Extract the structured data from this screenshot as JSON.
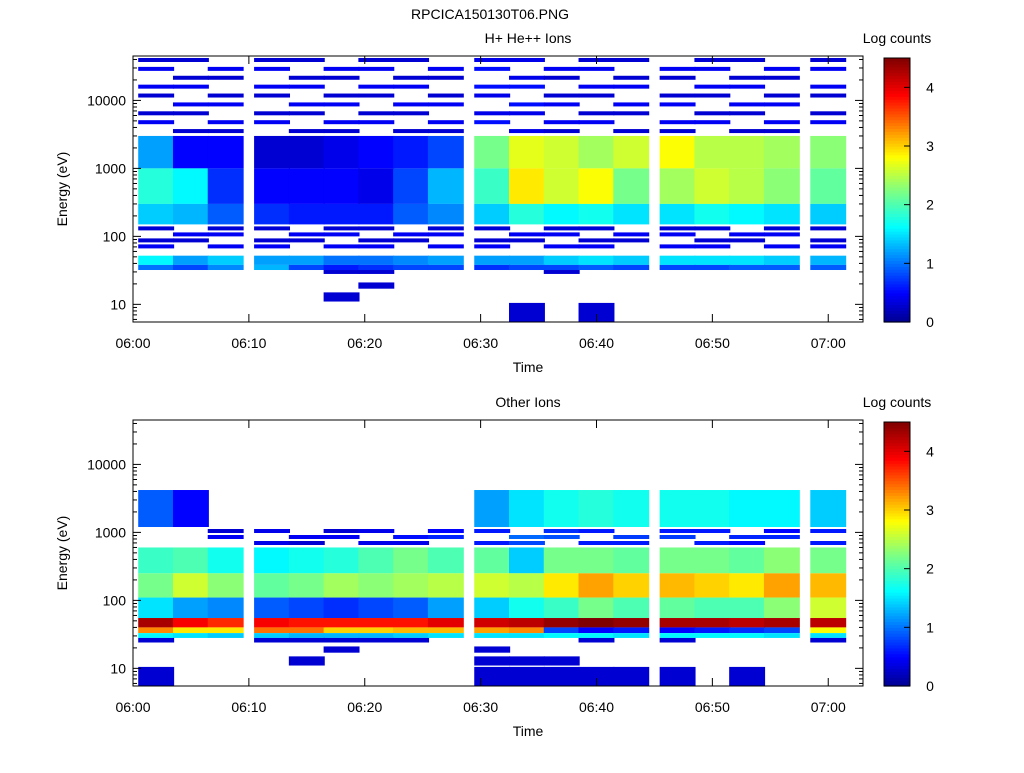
{
  "figure_title": "RPCICA150130T06.PNG",
  "colorbar_label": "Log counts",
  "chart_data": [
    {
      "type": "heatmap",
      "title": "H+ He++ Ions",
      "xlabel": "Time",
      "ylabel": "Energy (eV)",
      "y_scale": "log",
      "ylim": [
        5.5,
        45000
      ],
      "xlim": [
        "06:00",
        "07:03"
      ],
      "x_ticks": [
        "06:00",
        "06:10",
        "06:20",
        "06:30",
        "06:40",
        "06:50",
        "07:00"
      ],
      "y_ticks": [
        {
          "value": 10,
          "label": "10"
        },
        {
          "value": 100,
          "label": "100"
        },
        {
          "value": 1000,
          "label": "1000"
        },
        {
          "value": 10000,
          "label": "10000"
        }
      ],
      "colorbar": {
        "label": "Log counts",
        "min": 0,
        "max": 4.5,
        "ticks": [
          0,
          1,
          2,
          3,
          4
        ]
      },
      "grid": false,
      "time_bins": [
        "06:02",
        "06:05",
        "06:08",
        "06:12",
        "06:15",
        "06:18",
        "06:21",
        "06:24",
        "06:27",
        "06:31",
        "06:34",
        "06:37",
        "06:40",
        "06:43",
        "06:47",
        "06:50",
        "06:53",
        "06:56",
        "07:00"
      ],
      "energy_bands": [
        {
          "e_min": 3000,
          "e_max": 45000,
          "pattern": "sparse",
          "values": [
            0.3,
            0.3,
            0.3,
            0.3,
            0.3,
            0.3,
            0.3,
            0.3,
            0.3,
            0.4,
            0.4,
            0.3,
            0.3,
            0.3,
            0.3,
            0.3,
            0.3,
            0.3,
            0.3
          ]
        },
        {
          "e_min": 1000,
          "e_max": 3000,
          "pattern": "solid",
          "values": [
            1.2,
            0.5,
            0.5,
            0.3,
            0.3,
            0.4,
            0.5,
            0.6,
            0.8,
            2.2,
            2.7,
            2.6,
            2.4,
            2.6,
            2.8,
            2.5,
            2.5,
            2.4,
            2.3
          ]
        },
        {
          "e_min": 300,
          "e_max": 1000,
          "pattern": "solid",
          "values": [
            1.8,
            1.6,
            0.7,
            0.5,
            0.5,
            0.5,
            0.4,
            0.8,
            1.3,
            1.9,
            2.9,
            2.6,
            2.8,
            2.2,
            2.4,
            2.6,
            2.5,
            2.3,
            2.1
          ]
        },
        {
          "e_min": 150,
          "e_max": 300,
          "pattern": "solid",
          "values": [
            1.4,
            1.3,
            0.9,
            0.7,
            0.6,
            0.6,
            0.6,
            0.9,
            1.1,
            1.4,
            1.8,
            1.6,
            1.7,
            1.5,
            1.5,
            1.7,
            1.6,
            1.5,
            1.4
          ]
        },
        {
          "e_min": 60,
          "e_max": 150,
          "pattern": "sparse",
          "values": [
            0.3,
            0.3,
            0.3,
            0.3,
            0.3,
            0.3,
            0.3,
            0.3,
            0.3,
            0.3,
            0.3,
            0.3,
            0.3,
            0.3,
            0.3,
            0.3,
            0.3,
            0.3,
            0.3
          ]
        },
        {
          "e_min": 38,
          "e_max": 52,
          "pattern": "solid",
          "values": [
            1.6,
            1.2,
            1.4,
            1.2,
            1.2,
            1.0,
            1.0,
            1.1,
            1.2,
            1.2,
            1.2,
            1.4,
            1.5,
            1.4,
            1.5,
            1.5,
            1.5,
            1.4,
            1.3
          ]
        },
        {
          "e_min": 32,
          "e_max": 38,
          "pattern": "solid",
          "values": [
            1.0,
            0.8,
            1.1,
            1.3,
            0.8,
            0.6,
            0.7,
            0.8,
            0.8,
            0.7,
            0.8,
            0.8,
            0.9,
            0.8,
            0.8,
            0.8,
            0.9,
            0.9,
            0.9
          ]
        },
        {
          "e_min": 28,
          "e_max": 32,
          "pattern": "solid",
          "values": [
            null,
            null,
            null,
            null,
            null,
            0.3,
            0.3,
            null,
            null,
            null,
            null,
            0.3,
            null,
            null,
            null,
            null,
            null,
            null,
            null
          ]
        },
        {
          "e_min": 17,
          "e_max": 21,
          "pattern": "solid",
          "values": [
            null,
            null,
            null,
            null,
            null,
            null,
            0.3,
            null,
            null,
            null,
            null,
            null,
            null,
            null,
            null,
            null,
            null,
            null,
            null
          ]
        },
        {
          "e_min": 11,
          "e_max": 15,
          "pattern": "solid",
          "values": [
            null,
            null,
            null,
            null,
            null,
            0.3,
            null,
            null,
            null,
            null,
            null,
            null,
            null,
            null,
            null,
            null,
            null,
            null,
            null
          ]
        },
        {
          "e_min": 5.5,
          "e_max": 10.5,
          "pattern": "solid",
          "values": [
            null,
            null,
            null,
            null,
            null,
            null,
            null,
            null,
            null,
            null,
            0.3,
            null,
            0.3,
            null,
            null,
            null,
            null,
            null,
            null
          ]
        }
      ]
    },
    {
      "type": "heatmap",
      "title": "Other Ions",
      "xlabel": "Time",
      "ylabel": "Energy (eV)",
      "y_scale": "log",
      "ylim": [
        5.5,
        45000
      ],
      "xlim": [
        "06:00",
        "07:03"
      ],
      "x_ticks": [
        "06:00",
        "06:10",
        "06:20",
        "06:30",
        "06:40",
        "06:50",
        "07:00"
      ],
      "y_ticks": [
        {
          "value": 10,
          "label": "10"
        },
        {
          "value": 100,
          "label": "100"
        },
        {
          "value": 1000,
          "label": "1000"
        },
        {
          "value": 10000,
          "label": "10000"
        }
      ],
      "colorbar": {
        "label": "Log counts",
        "min": 0,
        "max": 4.5,
        "ticks": [
          0,
          1,
          2,
          3,
          4
        ]
      },
      "grid": false,
      "time_bins": [
        "06:02",
        "06:05",
        "06:08",
        "06:12",
        "06:15",
        "06:18",
        "06:21",
        "06:24",
        "06:27",
        "06:31",
        "06:34",
        "06:37",
        "06:40",
        "06:43",
        "06:47",
        "06:50",
        "06:53",
        "06:56",
        "07:00"
      ],
      "energy_bands": [
        {
          "e_min": 1200,
          "e_max": 4200,
          "pattern": "solid",
          "values": [
            0.9,
            0.5,
            null,
            null,
            null,
            null,
            null,
            null,
            null,
            1.2,
            1.5,
            1.7,
            1.8,
            1.7,
            1.7,
            1.7,
            1.6,
            1.6,
            1.4
          ]
        },
        {
          "e_min": 600,
          "e_max": 1200,
          "pattern": "sparse",
          "values": [
            null,
            null,
            0.3,
            0.4,
            0.3,
            0.3,
            0.4,
            0.4,
            0.5,
            0.6,
            0.8,
            0.7,
            0.6,
            0.6,
            0.6,
            0.6,
            0.5,
            0.5,
            0.6
          ]
        },
        {
          "e_min": 250,
          "e_max": 600,
          "pattern": "solid",
          "values": [
            1.9,
            2.0,
            1.7,
            1.6,
            1.7,
            1.8,
            2.0,
            2.2,
            2.0,
            2.1,
            1.4,
            2.2,
            2.2,
            2.1,
            2.2,
            2.2,
            2.1,
            2.3,
            2.2
          ]
        },
        {
          "e_min": 110,
          "e_max": 250,
          "pattern": "solid",
          "values": [
            2.2,
            2.6,
            2.3,
            2.1,
            2.2,
            2.4,
            2.3,
            2.4,
            2.5,
            2.6,
            2.5,
            2.9,
            3.2,
            3.0,
            3.1,
            3.0,
            2.9,
            3.2,
            3.1
          ]
        },
        {
          "e_min": 55,
          "e_max": 110,
          "pattern": "solid",
          "values": [
            1.5,
            1.2,
            1.1,
            0.9,
            0.8,
            0.7,
            0.8,
            0.9,
            1.2,
            1.4,
            1.7,
            1.9,
            2.2,
            2.0,
            2.1,
            2.0,
            2.0,
            2.3,
            2.6
          ]
        },
        {
          "e_min": 40,
          "e_max": 55,
          "pattern": "solid",
          "values": [
            4.3,
            3.9,
            3.7,
            3.9,
            3.8,
            3.8,
            3.8,
            3.8,
            4.0,
            4.1,
            4.2,
            4.4,
            4.5,
            4.4,
            4.3,
            4.3,
            4.2,
            4.3,
            4.2
          ]
        },
        {
          "e_min": 33,
          "e_max": 40,
          "pattern": "solid",
          "values": [
            3.3,
            2.9,
            2.9,
            3.4,
            3.4,
            3.0,
            3.0,
            3.1,
            3.1,
            3.2,
            3.3,
            0.8,
            0.5,
            0.6,
            0.5,
            0.6,
            0.7,
            0.8,
            2.8
          ]
        },
        {
          "e_min": 28,
          "e_max": 33,
          "pattern": "solid",
          "values": [
            1.6,
            1.5,
            1.4,
            1.4,
            1.3,
            1.3,
            1.3,
            1.4,
            1.5,
            1.5,
            1.5,
            1.6,
            1.6,
            1.5,
            1.6,
            1.6,
            1.6,
            1.5,
            1.5
          ]
        },
        {
          "e_min": 24,
          "e_max": 28,
          "pattern": "solid",
          "values": [
            0.3,
            null,
            null,
            0.3,
            0.3,
            0.3,
            0.3,
            0.3,
            null,
            null,
            null,
            null,
            0.3,
            null,
            0.3,
            null,
            null,
            null,
            0.3
          ]
        },
        {
          "e_min": 17,
          "e_max": 21,
          "pattern": "solid",
          "values": [
            null,
            null,
            null,
            null,
            null,
            0.3,
            null,
            null,
            null,
            0.3,
            null,
            null,
            null,
            null,
            null,
            null,
            null,
            null,
            null
          ]
        },
        {
          "e_min": 11,
          "e_max": 15,
          "pattern": "solid",
          "values": [
            null,
            null,
            null,
            null,
            0.3,
            null,
            null,
            null,
            null,
            0.3,
            0.3,
            0.3,
            null,
            null,
            null,
            null,
            null,
            null,
            null
          ]
        },
        {
          "e_min": 5.5,
          "e_max": 10.5,
          "pattern": "solid",
          "values": [
            0.3,
            null,
            null,
            null,
            null,
            null,
            null,
            null,
            null,
            0.3,
            0.3,
            0.3,
            0.3,
            0.3,
            0.3,
            null,
            0.3,
            null,
            null
          ]
        }
      ]
    }
  ]
}
